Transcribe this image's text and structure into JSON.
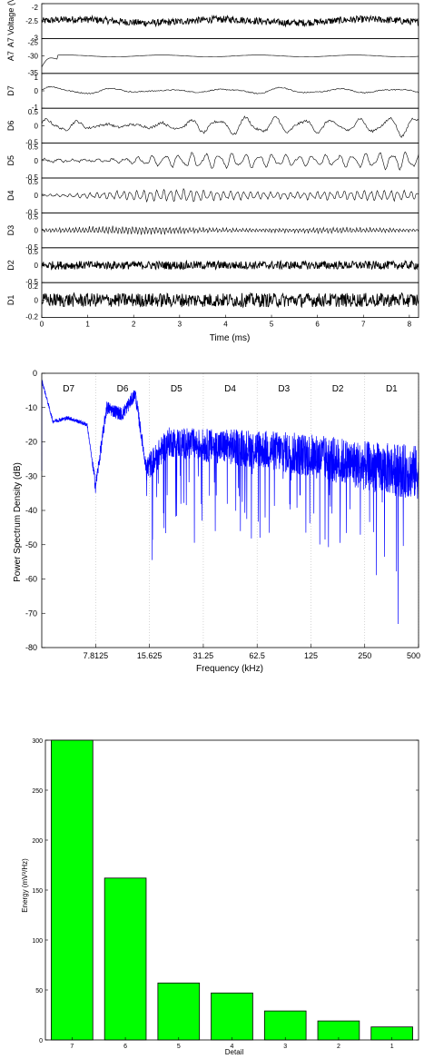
{
  "colors": {
    "axis": "#000000",
    "trace": "#000000",
    "psd_line": "#0000ff",
    "bars": "#00ff00",
    "grid": "#bbbbbb"
  },
  "chart_data": [
    {
      "type": "line",
      "xlabel": "Time (ms)",
      "xlim": [
        0,
        8.2
      ],
      "x_ticks": [
        "0",
        "1",
        "2",
        "3",
        "4",
        "5",
        "6",
        "7",
        "8"
      ],
      "panels": [
        {
          "name": "A7 Voltage (V)",
          "ylim": [
            -3,
            -2
          ],
          "y_ticks": [
            "-2",
            "-2.5",
            "-3"
          ],
          "center": -2.5,
          "amplitude": 0.1,
          "band": "noise"
        },
        {
          "name": "A7",
          "ylim": [
            -35,
            -25
          ],
          "y_ticks": [
            "-25",
            "-30",
            "-35"
          ],
          "center": -30,
          "amplitude": 1.2,
          "band": "smooth"
        },
        {
          "name": "D7",
          "ylim": [
            -1,
            1
          ],
          "y_ticks": [
            "1",
            "0",
            "-1"
          ],
          "center": 0,
          "amplitude": 0.25,
          "band": "very-low"
        },
        {
          "name": "D6",
          "ylim": [
            -0.5,
            0.5
          ],
          "y_ticks": [
            "0.5",
            "0",
            "-0.5"
          ],
          "center": 0,
          "amplitude": 0.3,
          "band": "low"
        },
        {
          "name": "D5",
          "ylim": [
            -0.5,
            0.5
          ],
          "y_ticks": [
            "0.5",
            "0",
            "-0.5"
          ],
          "center": 0,
          "amplitude": 0.22,
          "band": "mid"
        },
        {
          "name": "D4",
          "ylim": [
            -0.5,
            0.5
          ],
          "y_ticks": [
            "0.5",
            "0",
            "-0.5"
          ],
          "center": 0,
          "amplitude": 0.15,
          "band": "mid-high"
        },
        {
          "name": "D3",
          "ylim": [
            -0.5,
            0.5
          ],
          "y_ticks": [
            "0.5",
            "0",
            "-0.5"
          ],
          "center": 0,
          "amplitude": 0.1,
          "band": "high"
        },
        {
          "name": "D2",
          "ylim": [
            -0.5,
            0.5
          ],
          "y_ticks": [
            "0.5",
            "0",
            "-0.5"
          ],
          "center": 0,
          "amplitude": 0.12,
          "band": "very-high"
        },
        {
          "name": "D1",
          "ylim": [
            -0.2,
            0.2
          ],
          "y_ticks": [
            "0.2",
            "0",
            "-0.2"
          ],
          "center": 0,
          "amplitude": 0.08,
          "band": "noise"
        }
      ]
    },
    {
      "type": "line",
      "xlabel": "Frequency (kHz)",
      "ylabel": "Power Spectrum Density (dB)",
      "ylim": [
        -80,
        0
      ],
      "y_ticks": [
        0,
        -10,
        -20,
        -30,
        -40,
        -50,
        -60,
        -70,
        -80
      ],
      "x_scale": "log",
      "xlim": [
        3.9,
        500
      ],
      "x_tick_values": [
        7.8125,
        15.625,
        31.25,
        62.5,
        125,
        250,
        500
      ],
      "x_tick_labels": [
        "7.8125",
        "15.625",
        "31.25",
        "62.5",
        "125",
        "250",
        "500"
      ],
      "band_labels": [
        "D7",
        "D6",
        "D5",
        "D4",
        "D3",
        "D2",
        "D1"
      ],
      "grid": "vertical dotted",
      "trend_points": [
        {
          "x": 3.9,
          "y": -2
        },
        {
          "x": 4.5,
          "y": -14
        },
        {
          "x": 5.5,
          "y": -13
        },
        {
          "x": 7.0,
          "y": -15
        },
        {
          "x": 7.8,
          "y": -33
        },
        {
          "x": 9.0,
          "y": -10
        },
        {
          "x": 11.0,
          "y": -12
        },
        {
          "x": 13.0,
          "y": -6
        },
        {
          "x": 15.0,
          "y": -28
        },
        {
          "x": 20.0,
          "y": -20
        },
        {
          "x": 31.25,
          "y": -21
        },
        {
          "x": 62.5,
          "y": -22
        },
        {
          "x": 125,
          "y": -24
        },
        {
          "x": 250,
          "y": -27
        },
        {
          "x": 500,
          "y": -29
        }
      ]
    },
    {
      "type": "bar",
      "xlabel": "Detail",
      "ylabel": "Energy (mV²/Hz)",
      "ylim": [
        0,
        300
      ],
      "y_ticks": [
        0,
        50,
        100,
        150,
        200,
        250,
        300
      ],
      "categories": [
        "7",
        "6",
        "5",
        "4",
        "3",
        "2",
        "1"
      ],
      "values": [
        300,
        162,
        57,
        47,
        29,
        19,
        13
      ]
    }
  ]
}
